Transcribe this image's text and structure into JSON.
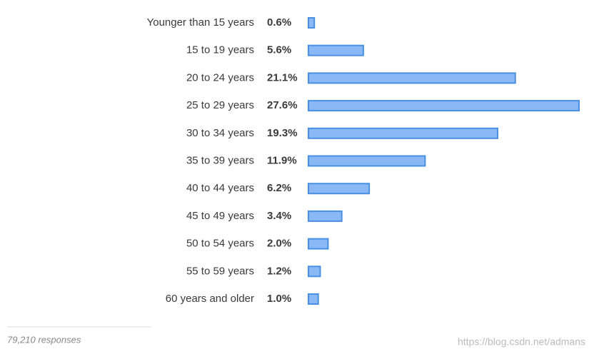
{
  "chart_data": {
    "type": "bar",
    "orientation": "horizontal",
    "categories": [
      "Younger than 15 years",
      "15 to 19 years",
      "20 to 24 years",
      "25 to 29 years",
      "30 to 34 years",
      "35 to 39 years",
      "40 to 44 years",
      "45 to 49 years",
      "50 to 54 years",
      "55 to 59 years",
      "60 years and older"
    ],
    "values": [
      0.6,
      5.6,
      21.1,
      27.6,
      19.3,
      11.9,
      6.2,
      3.4,
      2.0,
      1.2,
      1.0
    ],
    "value_labels": [
      "0.6%",
      "5.6%",
      "21.1%",
      "27.6%",
      "19.3%",
      "11.9%",
      "6.2%",
      "3.4%",
      "2.0%",
      "1.2%",
      "1.0%"
    ],
    "color": "#8ab8f5",
    "stroke": "#4a90e2",
    "footnote": "79,210 responses",
    "watermark": "https://blog.csdn.net/admans"
  }
}
